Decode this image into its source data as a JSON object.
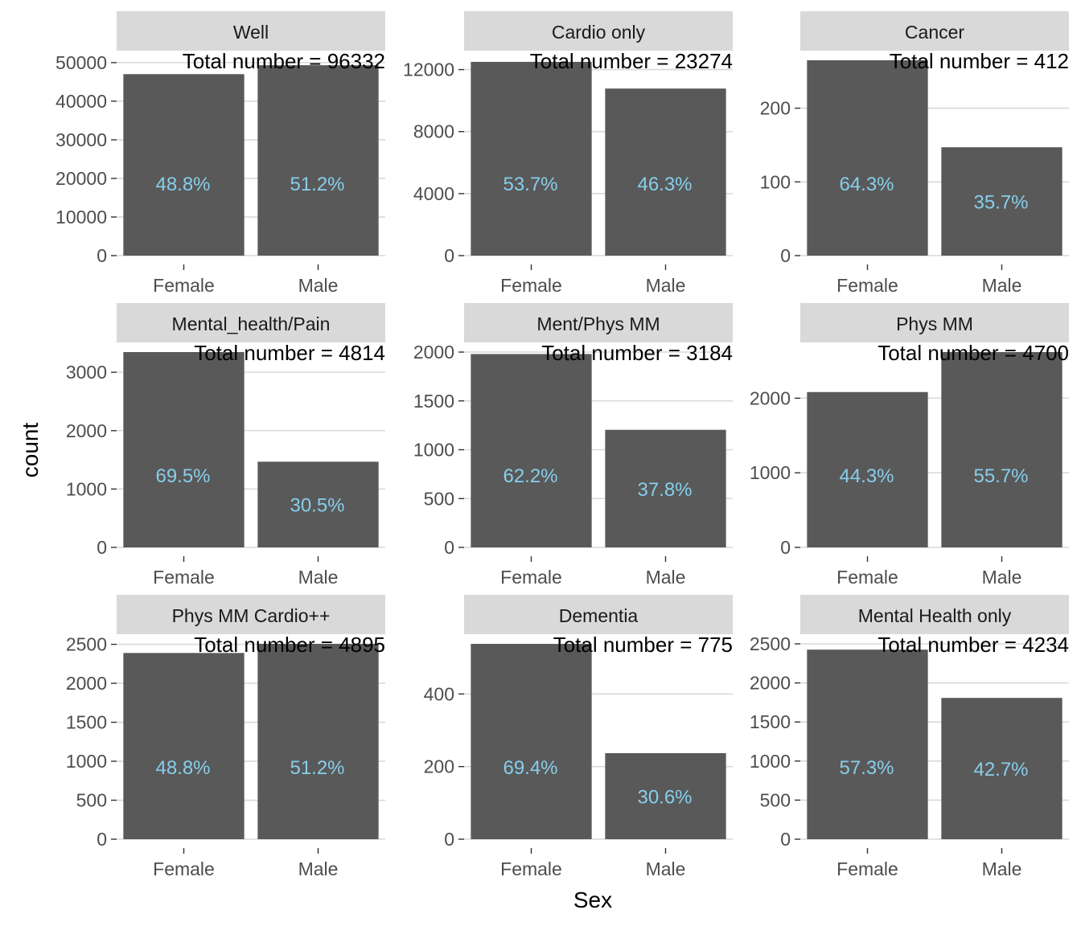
{
  "chart_data": {
    "type": "bar",
    "xlabel": "Sex",
    "ylabel": "count",
    "colors": {
      "bar": "#595959",
      "pct_label": "#87CEEB",
      "strip_bg": "#d9d9d9",
      "grid": "#d9d9d9"
    },
    "facets": [
      {
        "title": "Well",
        "total_label": "Total number = 96332",
        "categories": [
          "Female",
          "Male"
        ],
        "values": [
          47010,
          49322
        ],
        "pct_labels": [
          "48.8%",
          "51.2%"
        ],
        "y_ticks": [
          0,
          10000,
          20000,
          30000,
          40000,
          50000
        ],
        "ylim": [
          0,
          50600
        ]
      },
      {
        "title": "Cardio only",
        "total_label": "Total number = 23274",
        "categories": [
          "Female",
          "Male"
        ],
        "values": [
          12498,
          10776
        ],
        "pct_labels": [
          "53.7%",
          "46.3%"
        ],
        "y_ticks": [
          0,
          4000,
          8000,
          12000
        ],
        "ylim": [
          0,
          12600
        ]
      },
      {
        "title": "Cancer",
        "total_label": "Total number = 412",
        "categories": [
          "Female",
          "Male"
        ],
        "values": [
          265,
          147
        ],
        "pct_labels": [
          "64.3%",
          "35.7%"
        ],
        "y_ticks": [
          0,
          100,
          200
        ],
        "ylim": [
          0,
          265
        ]
      },
      {
        "title": "Mental_health/Pain",
        "total_label": "Total number = 4814",
        "categories": [
          "Female",
          "Male"
        ],
        "values": [
          3346,
          1468
        ],
        "pct_labels": [
          "69.5%",
          "30.5%"
        ],
        "y_ticks": [
          0,
          1000,
          2000,
          3000
        ],
        "ylim": [
          0,
          3346
        ]
      },
      {
        "title": "Ment/Phys MM",
        "total_label": "Total number = 3184",
        "categories": [
          "Female",
          "Male"
        ],
        "values": [
          1980,
          1204
        ],
        "pct_labels": [
          "62.2%",
          "37.8%"
        ],
        "y_ticks": [
          0,
          500,
          1000,
          1500,
          2000
        ],
        "ylim": [
          0,
          2000
        ]
      },
      {
        "title": "Phys MM",
        "total_label": "Total number = 4700",
        "categories": [
          "Female",
          "Male"
        ],
        "values": [
          2082,
          2618
        ],
        "pct_labels": [
          "44.3%",
          "55.7%"
        ],
        "y_ticks": [
          0,
          1000,
          2000
        ],
        "ylim": [
          0,
          2618
        ]
      },
      {
        "title": "Phys MM Cardio++",
        "total_label": "Total number = 4895",
        "categories": [
          "Female",
          "Male"
        ],
        "values": [
          2389,
          2506
        ],
        "pct_labels": [
          "48.8%",
          "51.2%"
        ],
        "y_ticks": [
          0,
          500,
          1000,
          1500,
          2000,
          2500
        ],
        "ylim": [
          0,
          2506
        ]
      },
      {
        "title": "Dementia",
        "total_label": "Total number = 775",
        "categories": [
          "Female",
          "Male"
        ],
        "values": [
          538,
          237
        ],
        "pct_labels": [
          "69.4%",
          "30.6%"
        ],
        "y_ticks": [
          0,
          200,
          400
        ],
        "ylim": [
          0,
          538
        ]
      },
      {
        "title": "Mental Health only",
        "total_label": "Total number = 4234",
        "categories": [
          "Female",
          "Male"
        ],
        "values": [
          2426,
          1808
        ],
        "pct_labels": [
          "57.3%",
          "42.7%"
        ],
        "y_ticks": [
          0,
          500,
          1000,
          1500,
          2000,
          2500
        ],
        "ylim": [
          0,
          2500
        ]
      }
    ]
  }
}
